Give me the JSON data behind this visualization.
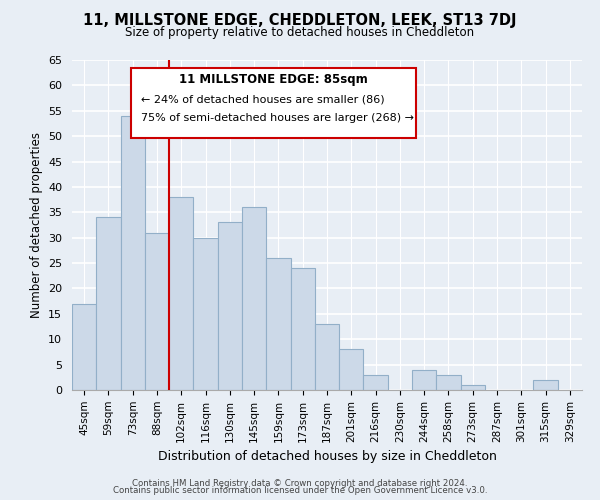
{
  "title": "11, MILLSTONE EDGE, CHEDDLETON, LEEK, ST13 7DJ",
  "subtitle": "Size of property relative to detached houses in Cheddleton",
  "xlabel": "Distribution of detached houses by size in Cheddleton",
  "ylabel": "Number of detached properties",
  "categories": [
    "45sqm",
    "59sqm",
    "73sqm",
    "88sqm",
    "102sqm",
    "116sqm",
    "130sqm",
    "145sqm",
    "159sqm",
    "173sqm",
    "187sqm",
    "201sqm",
    "216sqm",
    "230sqm",
    "244sqm",
    "258sqm",
    "273sqm",
    "287sqm",
    "301sqm",
    "315sqm",
    "329sqm"
  ],
  "values": [
    17,
    34,
    54,
    31,
    38,
    30,
    33,
    36,
    26,
    24,
    13,
    8,
    3,
    0,
    4,
    3,
    1,
    0,
    0,
    2,
    0
  ],
  "bar_color": "#ccd9e8",
  "bar_edge_color": "#92afc8",
  "vline_x_index": 3,
  "vline_color": "#cc0000",
  "annotation_title": "11 MILLSTONE EDGE: 85sqm",
  "annotation_line1": "← 24% of detached houses are smaller (86)",
  "annotation_line2": "75% of semi-detached houses are larger (268) →",
  "annotation_box_color": "#ffffff",
  "annotation_box_edge": "#cc0000",
  "ylim": [
    0,
    65
  ],
  "yticks": [
    0,
    5,
    10,
    15,
    20,
    25,
    30,
    35,
    40,
    45,
    50,
    55,
    60,
    65
  ],
  "footer_line1": "Contains HM Land Registry data © Crown copyright and database right 2024.",
  "footer_line2": "Contains public sector information licensed under the Open Government Licence v3.0.",
  "bg_color": "#e8eef5",
  "plot_bg_color": "#e8eef5",
  "grid_color": "#ffffff"
}
